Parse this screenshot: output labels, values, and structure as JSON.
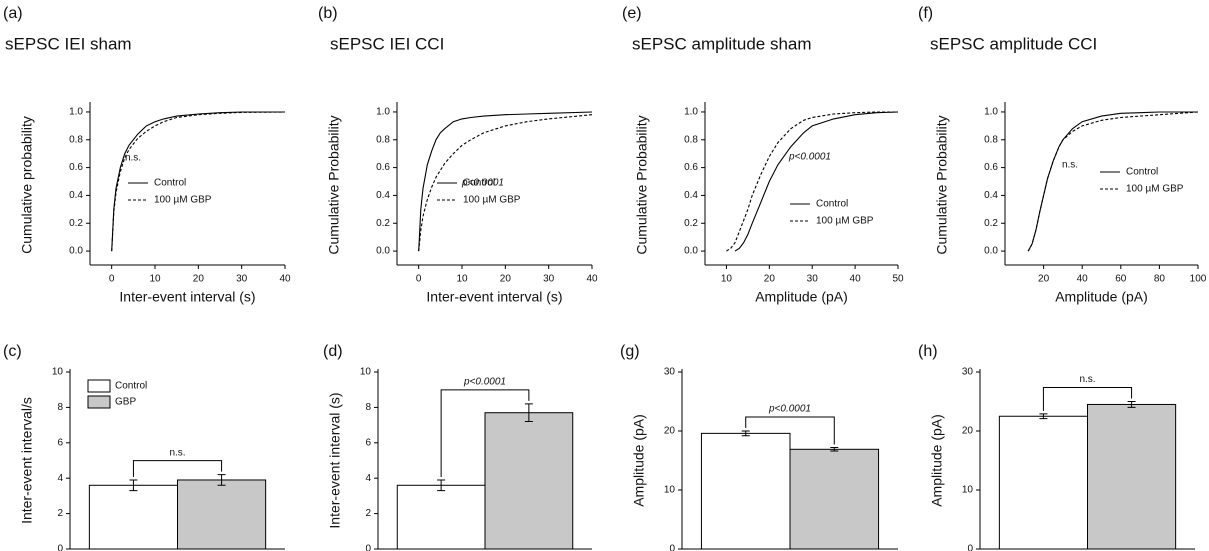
{
  "chart_data": [
    {
      "type": "line",
      "label": "(a)",
      "title": "sEPSC IEI sham",
      "xlabel": "Inter-event interval (s)",
      "ylabel": "Cumulative probability",
      "annotation": "n.s.",
      "x": [
        0,
        0.5,
        1,
        2,
        3,
        4,
        5,
        6,
        8,
        10,
        12,
        15,
        20,
        25,
        30,
        40
      ],
      "series": [
        {
          "name": "Control",
          "color": "#000000",
          "style": "solid",
          "values": [
            0,
            0.3,
            0.45,
            0.6,
            0.7,
            0.76,
            0.8,
            0.84,
            0.9,
            0.93,
            0.95,
            0.97,
            0.985,
            0.995,
            1,
            1
          ]
        },
        {
          "name": "100 µM GBP",
          "color": "#000000",
          "style": "dashed",
          "values": [
            0,
            0.28,
            0.42,
            0.57,
            0.67,
            0.73,
            0.77,
            0.81,
            0.86,
            0.9,
            0.93,
            0.96,
            0.98,
            0.99,
            0.997,
            1
          ]
        }
      ],
      "xlim": [
        -5,
        40
      ],
      "xticks": [
        0,
        10,
        20,
        30,
        40
      ],
      "ylim": [
        -0.1,
        1.05
      ],
      "yticks": [
        {
          "value": 0,
          "label": "0.0"
        },
        0.2,
        0.4,
        0.6,
        0.8,
        {
          "value": 1,
          "label": "1.0"
        }
      ]
    },
    {
      "type": "line",
      "label": "(b)",
      "title": "sEPSC IEI CCI",
      "xlabel": "Inter-event interval (s)",
      "ylabel": "Cumulative Probability",
      "annotation": "p<0.0001",
      "x": [
        0,
        0.5,
        1,
        2,
        3,
        4,
        5,
        6,
        8,
        10,
        12,
        15,
        20,
        25,
        30,
        40
      ],
      "series": [
        {
          "name": "Control",
          "color": "#000000",
          "style": "solid",
          "values": [
            0,
            0.3,
            0.45,
            0.62,
            0.72,
            0.8,
            0.85,
            0.88,
            0.93,
            0.95,
            0.96,
            0.97,
            0.98,
            0.985,
            0.99,
            1
          ]
        },
        {
          "name": "100 µM GBP",
          "color": "#000000",
          "style": "dashed",
          "values": [
            0,
            0.15,
            0.25,
            0.37,
            0.46,
            0.53,
            0.58,
            0.63,
            0.7,
            0.76,
            0.8,
            0.85,
            0.9,
            0.93,
            0.95,
            0.98
          ]
        }
      ],
      "xlim": [
        -5,
        40
      ],
      "xticks": [
        0,
        10,
        20,
        30,
        40
      ],
      "ylim": [
        -0.1,
        1.05
      ],
      "yticks": [
        {
          "value": 0,
          "label": "0.0"
        },
        0.2,
        0.4,
        0.6,
        0.8,
        {
          "value": 1,
          "label": "1.0"
        }
      ]
    },
    {
      "type": "line",
      "label": "(e)",
      "title": "sEPSC amplitude sham",
      "xlabel": "Amplitude (pA)",
      "ylabel": "Cumulative Probability",
      "annotation": "p<0.0001",
      "x": [
        10,
        11,
        12,
        13,
        14,
        15,
        16,
        18,
        20,
        22,
        25,
        28,
        30,
        35,
        40,
        45,
        50
      ],
      "series": [
        {
          "name": "Control",
          "color": "#000000",
          "style": "solid",
          "values": [
            null,
            null,
            0,
            0.02,
            0.06,
            0.12,
            0.2,
            0.35,
            0.5,
            0.62,
            0.75,
            0.85,
            0.9,
            0.95,
            0.98,
            0.995,
            1
          ]
        },
        {
          "name": "100 µM GBP",
          "color": "#000000",
          "style": "dashed",
          "values": [
            0,
            0.02,
            0.06,
            0.14,
            0.22,
            0.3,
            0.4,
            0.55,
            0.68,
            0.78,
            0.88,
            0.94,
            0.96,
            0.985,
            0.995,
            1,
            1
          ]
        }
      ],
      "xlim": [
        5,
        50
      ],
      "xticks": [
        10,
        20,
        30,
        40,
        50
      ],
      "ylim": [
        -0.1,
        1.05
      ],
      "yticks": [
        {
          "value": 0,
          "label": "0.0"
        },
        0.2,
        0.4,
        0.6,
        0.8,
        {
          "value": 1,
          "label": "1.0"
        }
      ]
    },
    {
      "type": "line",
      "label": "(f)",
      "title": "sEPSC amplitude CCI",
      "xlabel": "Amplitude (pA)",
      "ylabel": "Cumulative Probability",
      "annotation": "n.s.",
      "x": [
        12,
        14,
        16,
        18,
        20,
        22,
        25,
        28,
        30,
        35,
        40,
        50,
        60,
        80,
        100
      ],
      "series": [
        {
          "name": "Control",
          "color": "#000000",
          "style": "solid",
          "values": [
            0,
            0.05,
            0.15,
            0.28,
            0.4,
            0.52,
            0.65,
            0.75,
            0.8,
            0.88,
            0.93,
            0.97,
            0.99,
            1,
            1
          ]
        },
        {
          "name": "100 µM GBP",
          "color": "#000000",
          "style": "dashed",
          "values": [
            0,
            0.05,
            0.15,
            0.28,
            0.4,
            0.52,
            0.65,
            0.75,
            0.8,
            0.86,
            0.9,
            0.94,
            0.96,
            0.98,
            1
          ]
        }
      ],
      "xlim": [
        0,
        100
      ],
      "xticks": [
        20,
        40,
        60,
        80,
        100
      ],
      "ylim": [
        -0.1,
        1.05
      ],
      "yticks": [
        {
          "value": 0,
          "label": "0.0"
        },
        0.2,
        0.4,
        0.6,
        0.8,
        {
          "value": 1,
          "label": "1.0"
        }
      ]
    },
    {
      "type": "bar",
      "label": "(c)",
      "ylabel": "Inter-event interval/s",
      "annotation": "n.s.",
      "legend": [
        "Control",
        "GBP"
      ],
      "values": [
        3.6,
        3.9
      ],
      "errors": [
        0.3,
        0.3
      ],
      "colors": [
        "#ffffff",
        "#c8c8c8"
      ],
      "ylim": [
        0,
        10
      ],
      "yticks": [
        0,
        2,
        4,
        6,
        8,
        10
      ]
    },
    {
      "type": "bar",
      "label": "(d)",
      "ylabel": "Inter-event interval (s)",
      "annotation": "p<0.0001",
      "values": [
        3.6,
        7.7
      ],
      "errors": [
        0.3,
        0.5
      ],
      "colors": [
        "#ffffff",
        "#c8c8c8"
      ],
      "ylim": [
        0,
        10
      ],
      "yticks": [
        0,
        2,
        4,
        6,
        8,
        10
      ]
    },
    {
      "type": "bar",
      "label": "(g)",
      "ylabel": "Amplitude (pA)",
      "annotation": "p<0.0001",
      "values": [
        19.6,
        16.9
      ],
      "errors": [
        0.4,
        0.3
      ],
      "colors": [
        "#ffffff",
        "#c8c8c8"
      ],
      "ylim": [
        0,
        30
      ],
      "yticks": [
        0,
        10,
        20,
        30
      ]
    },
    {
      "type": "bar",
      "label": "(h)",
      "ylabel": "Amplitude (pA)",
      "annotation": "n.s.",
      "values": [
        22.5,
        24.5
      ],
      "errors": [
        0.4,
        0.5
      ],
      "colors": [
        "#ffffff",
        "#c8c8c8"
      ],
      "ylim": [
        0,
        30
      ],
      "yticks": [
        0,
        10,
        20,
        30
      ]
    }
  ]
}
